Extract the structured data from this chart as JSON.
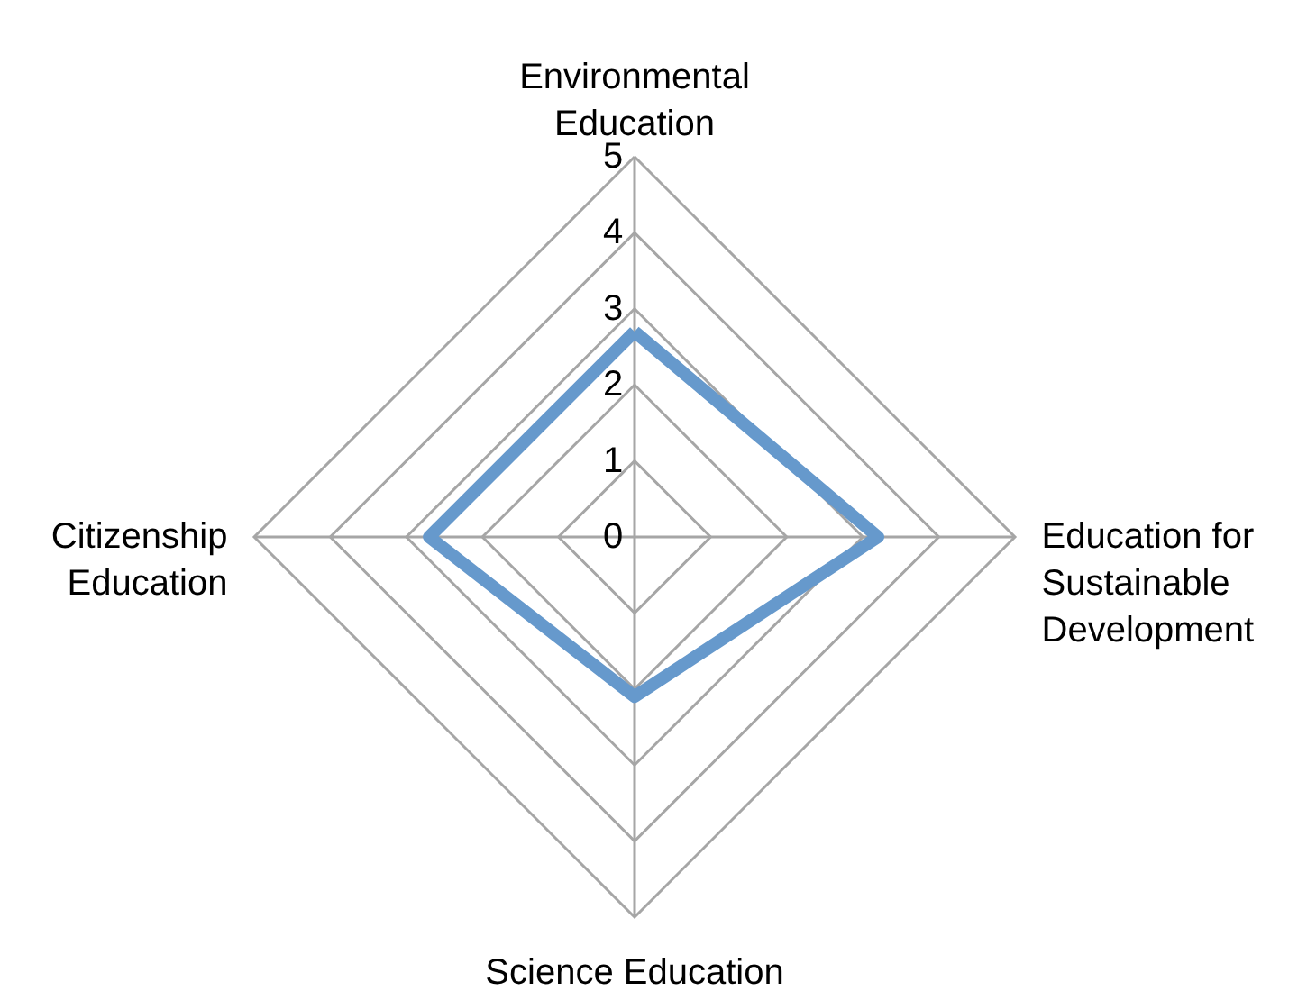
{
  "chart_data": {
    "type": "radar",
    "categories": [
      "Environmental Education",
      "Education for Sustainable Development",
      "Science Education",
      "Citizenship Education"
    ],
    "series": [
      {
        "color": "#6699cc",
        "values": [
          2.7,
          3.2,
          2.1,
          2.7
        ]
      }
    ],
    "ylim": [
      0,
      5
    ],
    "yticks": [
      0,
      1,
      2,
      3,
      4,
      5
    ],
    "grid": true,
    "marker": "none",
    "line_style": "solid"
  }
}
